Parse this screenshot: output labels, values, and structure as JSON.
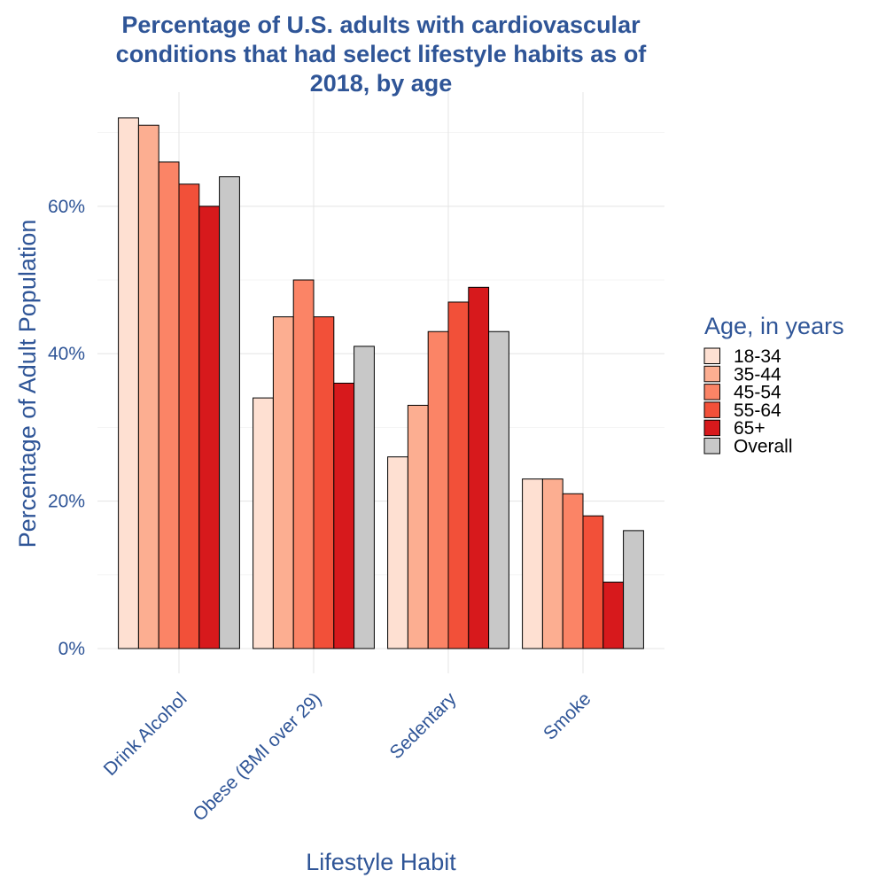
{
  "chart_data": {
    "type": "bar",
    "title_lines": [
      "Percentage of U.S. adults with cardiovascular",
      "conditions that had select lifestyle habits as of",
      "2018, by age"
    ],
    "xlabel": "Lifestyle Habit",
    "ylabel": "Percentage of Adult Population",
    "categories": [
      "Drink Alcohol",
      "Obese (BMI over 29)",
      "Sedentary",
      "Smoke"
    ],
    "ylim": [
      0,
      72
    ],
    "yticks": [
      {
        "value": 0,
        "label": "0%"
      },
      {
        "value": 20,
        "label": "20%"
      },
      {
        "value": 40,
        "label": "40%"
      },
      {
        "value": 60,
        "label": "60%"
      }
    ],
    "legend_title": "Age, in years",
    "legend_position": "right",
    "grid": true,
    "series": [
      {
        "name": "18-34",
        "color": "#fee0d2",
        "values": [
          72,
          34,
          26,
          23
        ]
      },
      {
        "name": "35-44",
        "color": "#fcae91",
        "values": [
          71,
          45,
          33,
          23
        ]
      },
      {
        "name": "45-54",
        "color": "#fb8466",
        "values": [
          66,
          50,
          43,
          21
        ]
      },
      {
        "name": "55-64",
        "color": "#f25039",
        "values": [
          63,
          45,
          47,
          18
        ]
      },
      {
        "name": "65+",
        "color": "#d7191c",
        "values": [
          60,
          36,
          49,
          9
        ]
      },
      {
        "name": "Overall",
        "color": "#c8c8c8",
        "values": [
          64,
          41,
          43,
          16
        ]
      }
    ]
  }
}
